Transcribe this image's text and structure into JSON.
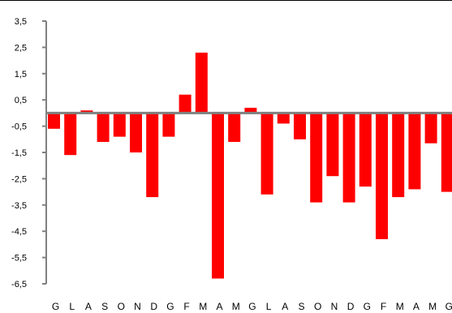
{
  "chart_data": {
    "type": "bar",
    "title": "",
    "xlabel": "",
    "ylabel": "",
    "categories": [
      "G",
      "L",
      "A",
      "S",
      "O",
      "N",
      "D",
      "G",
      "F",
      "M",
      "A",
      "M",
      "G",
      "L",
      "A",
      "S",
      "O",
      "N",
      "D",
      "G",
      "F",
      "M",
      "A",
      "M",
      "G"
    ],
    "values": [
      -0.6,
      -1.6,
      0.1,
      -1.1,
      -0.9,
      -1.5,
      -3.2,
      -0.9,
      0.7,
      2.3,
      -6.3,
      -1.1,
      0.2,
      -3.1,
      -0.4,
      -1.0,
      -3.4,
      -2.4,
      -3.4,
      -2.8,
      -4.8,
      -3.2,
      -2.9,
      -1.15,
      -3.0
    ],
    "ylim": [
      -6.5,
      3.5
    ],
    "yticks": [
      3.5,
      2.5,
      1.5,
      0.5,
      -0.5,
      -1.5,
      -2.5,
      -3.5,
      -4.5,
      -5.5,
      -6.5
    ],
    "ytick_labels": [
      "3,5",
      "2,5",
      "1,5",
      "0,5",
      "-0,5",
      "-1,5",
      "-2,5",
      "-3,5",
      "-4,5",
      "-5,5",
      "-6,5"
    ],
    "bar_color": "#ff0000",
    "baseline_color": "#808080",
    "axis_color": "#808080",
    "grid": false,
    "legend": "none"
  }
}
